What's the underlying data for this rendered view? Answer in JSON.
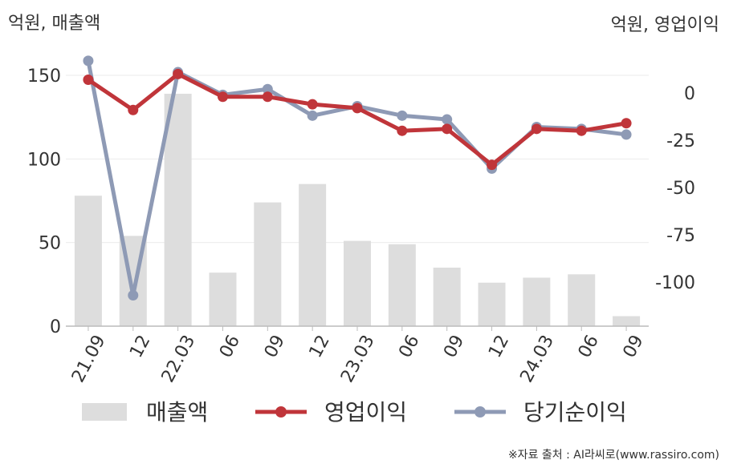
{
  "chart_data": {
    "type": "bar+line",
    "left_axis_title": "억원, 매출액",
    "right_axis_title": "억원, 영업이익",
    "source_note": "※자료 출처 : AI라씨로(www.rassiro.com)",
    "categories": [
      "21.09",
      "12",
      "22.03",
      "06",
      "09",
      "12",
      "23.03",
      "06",
      "09",
      "12",
      "24.03",
      "06",
      "09"
    ],
    "left_ylim": [
      0,
      160
    ],
    "left_ticks": [
      0,
      50,
      100,
      150
    ],
    "right_ylim": [
      -124,
      20
    ],
    "right_ticks": [
      0,
      -25,
      -50,
      -75,
      -100
    ],
    "grid": true,
    "legend_position": "bottom",
    "series": [
      {
        "name": "매출액",
        "kind": "bar",
        "axis": "left",
        "color": "#dddddd",
        "values": [
          78,
          54,
          139,
          32,
          74,
          85,
          51,
          49,
          35,
          26,
          29,
          31,
          6
        ]
      },
      {
        "name": "영업이익",
        "kind": "line",
        "axis": "right",
        "color": "#c0353a",
        "values": [
          7,
          -9,
          10,
          -2,
          -2,
          -6,
          -8,
          -20,
          -19,
          -38,
          -19,
          -20,
          -16
        ]
      },
      {
        "name": "당기순이익",
        "kind": "line",
        "axis": "right",
        "color": "#8e9ab5",
        "values": [
          17,
          -107,
          11,
          -1,
          2,
          -12,
          -7,
          -12,
          -14,
          -40,
          -18,
          -19,
          -22
        ]
      }
    ]
  }
}
